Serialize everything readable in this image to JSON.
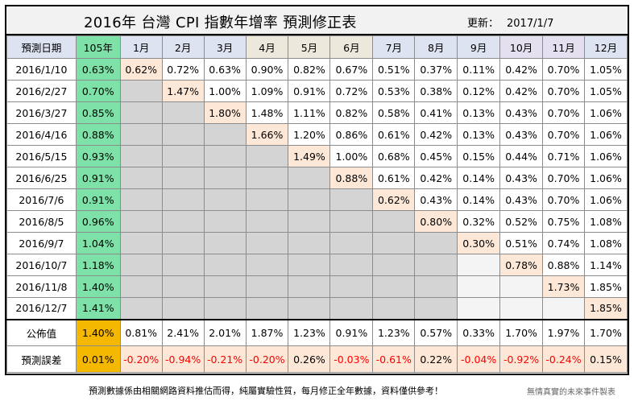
{
  "title": "2016年 台灣 CPI 指數年增率 預測修正表",
  "updated_label": "更新：",
  "updated_date": "2017/1/7",
  "header": {
    "corner": "預測日期",
    "year": "105年",
    "months": [
      "1月",
      "2月",
      "3月",
      "4月",
      "5月",
      "6月",
      "7月",
      "8月",
      "9月",
      "10月",
      "11月",
      "12月"
    ]
  },
  "rows": [
    {
      "date": "2016/1/10",
      "annual": "0.63%",
      "values": [
        "0.62%",
        "0.72%",
        "0.63%",
        "0.90%",
        "0.82%",
        "0.67%",
        "0.51%",
        "0.37%",
        "0.11%",
        "0.42%",
        "0.70%",
        "1.05%"
      ]
    },
    {
      "date": "2016/2/27",
      "annual": "0.70%",
      "values": [
        "",
        "1.47%",
        "1.00%",
        "1.09%",
        "0.91%",
        "0.72%",
        "0.53%",
        "0.38%",
        "0.12%",
        "0.42%",
        "0.70%",
        "1.05%"
      ]
    },
    {
      "date": "2016/3/27",
      "annual": "0.85%",
      "values": [
        "",
        "",
        "1.80%",
        "1.48%",
        "1.11%",
        "0.82%",
        "0.58%",
        "0.41%",
        "0.13%",
        "0.43%",
        "0.70%",
        "1.06%"
      ]
    },
    {
      "date": "2016/4/16",
      "annual": "0.88%",
      "values": [
        "",
        "",
        "",
        "1.66%",
        "1.20%",
        "0.86%",
        "0.61%",
        "0.42%",
        "0.13%",
        "0.43%",
        "0.70%",
        "1.06%"
      ]
    },
    {
      "date": "2016/5/15",
      "annual": "0.93%",
      "values": [
        "",
        "",
        "",
        "",
        "1.49%",
        "1.00%",
        "0.68%",
        "0.45%",
        "0.15%",
        "0.44%",
        "0.71%",
        "1.06%"
      ]
    },
    {
      "date": "2016/6/25",
      "annual": "0.91%",
      "values": [
        "",
        "",
        "",
        "",
        "",
        "0.88%",
        "0.61%",
        "0.42%",
        "0.14%",
        "0.43%",
        "0.70%",
        "1.06%"
      ]
    },
    {
      "date": "2016/7/6",
      "annual": "0.91%",
      "values": [
        "",
        "",
        "",
        "",
        "",
        "",
        "0.62%",
        "0.43%",
        "0.14%",
        "0.43%",
        "0.70%",
        "1.06%"
      ]
    },
    {
      "date": "2016/8/5",
      "annual": "0.96%",
      "values": [
        "",
        "",
        "",
        "",
        "",
        "",
        "",
        "0.80%",
        "0.32%",
        "0.52%",
        "0.75%",
        "1.08%"
      ]
    },
    {
      "date": "2016/9/7",
      "annual": "1.04%",
      "values": [
        "",
        "",
        "",
        "",
        "",
        "",
        "",
        "",
        "0.30%",
        "0.51%",
        "0.74%",
        "1.08%"
      ]
    },
    {
      "date": "2016/10/7",
      "annual": "1.18%",
      "values": [
        "",
        "",
        "",
        "",
        "",
        "",
        "",
        "",
        "",
        "0.78%",
        "0.88%",
        "1.14%"
      ]
    },
    {
      "date": "2016/11/8",
      "annual": "1.40%",
      "values": [
        "",
        "",
        "",
        "",
        "",
        "",
        "",
        "",
        "",
        "",
        "1.73%",
        "1.85%"
      ]
    },
    {
      "date": "2016/12/7",
      "annual": "1.41%",
      "values": [
        "",
        "",
        "",
        "",
        "",
        "",
        "",
        "",
        "",
        "",
        "",
        "1.85%"
      ]
    }
  ],
  "published": {
    "label": "公佈值",
    "annual": "1.40%",
    "values": [
      "0.81%",
      "2.41%",
      "2.01%",
      "1.87%",
      "1.23%",
      "0.91%",
      "1.23%",
      "0.57%",
      "0.33%",
      "1.70%",
      "1.97%",
      "1.70%"
    ]
  },
  "error": {
    "label": "預測誤差",
    "annual": "0.01%",
    "values": [
      "-0.20%",
      "-0.94%",
      "-0.21%",
      "-0.20%",
      "0.26%",
      "-0.03%",
      "-0.61%",
      "0.22%",
      "-0.04%",
      "-0.92%",
      "-0.24%",
      "0.15%"
    ]
  },
  "footer": {
    "note": "預測數據係由相關網路資料推估而得，純屬實驗性質，每月修正全年數據，資料僅供參考！",
    "credit": "無情真實的未來事件製表"
  }
}
